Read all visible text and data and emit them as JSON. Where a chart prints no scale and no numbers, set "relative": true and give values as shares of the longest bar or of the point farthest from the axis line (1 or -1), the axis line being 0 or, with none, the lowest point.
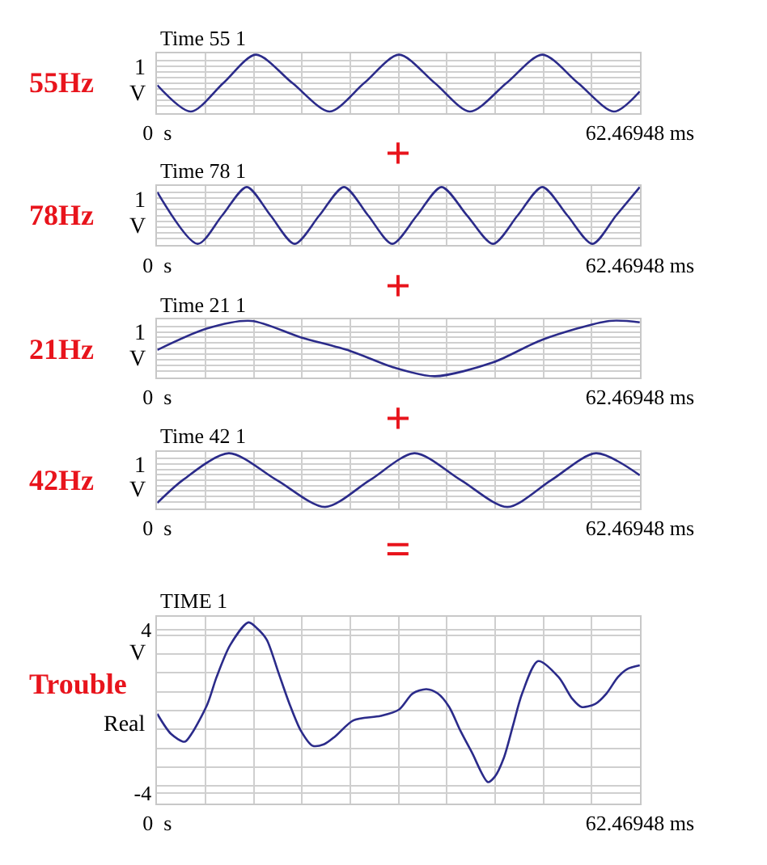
{
  "chart_data": [
    {
      "type": "line",
      "title": "Time 55 1",
      "ylabel": "V",
      "annotations": [
        "55Hz",
        "1",
        "+"
      ],
      "relative": true,
      "grid": true,
      "line_style": "solid",
      "xlim": [
        0,
        62.46948
      ],
      "xticks": [
        {
          "value": 0,
          "label": "0  s"
        },
        {
          "value": 6.246948,
          "label": null
        },
        {
          "value": 12.493896,
          "label": null
        },
        {
          "value": 18.740844,
          "label": null
        },
        {
          "value": 24.987792,
          "label": null
        },
        {
          "value": 31.23474,
          "label": null
        },
        {
          "value": 37.481688,
          "label": null
        },
        {
          "value": 43.728636,
          "label": null
        },
        {
          "value": 49.975584,
          "label": null
        },
        {
          "value": 56.222532,
          "label": null
        },
        {
          "value": 62.46948,
          "label": "62.46948 ms"
        }
      ],
      "x": [
        0,
        4.35,
        8.55,
        12.75,
        17.5,
        22.31,
        26.77,
        31.29,
        35.93,
        40.47,
        45.2,
        49.84,
        54.47,
        59.11,
        62.46
      ],
      "series": [
        {
          "color": "#2b2b8a",
          "values": [
            -0.07,
            -1,
            0,
            1,
            0,
            -1,
            0,
            1,
            0,
            -1,
            0,
            1,
            0,
            -1,
            -0.29
          ]
        }
      ]
    },
    {
      "type": "line",
      "title": "Time 78 1",
      "ylabel": "V",
      "annotations": [
        "78Hz",
        "1",
        "+"
      ],
      "relative": true,
      "grid": true,
      "line_style": "solid",
      "xlim": [
        0,
        62.46948
      ],
      "xticks": [
        {
          "value": 0,
          "label": "0  s"
        },
        {
          "value": 6.246948,
          "label": null
        },
        {
          "value": 12.493896,
          "label": null
        },
        {
          "value": 18.740844,
          "label": null
        },
        {
          "value": 24.987792,
          "label": null
        },
        {
          "value": 31.23474,
          "label": null
        },
        {
          "value": 37.481688,
          "label": null
        },
        {
          "value": 43.728636,
          "label": null
        },
        {
          "value": 49.975584,
          "label": null
        },
        {
          "value": 56.222532,
          "label": null
        },
        {
          "value": 62.46948,
          "label": "62.46948 ms"
        }
      ],
      "x": [
        0,
        5.22,
        8.4,
        11.59,
        14.66,
        17.79,
        20.98,
        24.17,
        27.29,
        30.42,
        33.61,
        36.8,
        40.1,
        43.46,
        46.65,
        49.84,
        53.08,
        56.33,
        59.4,
        62.46
      ],
      "series": [
        {
          "color": "#2b2b8a",
          "values": [
            0.82,
            -1,
            0,
            1,
            0,
            -1,
            0,
            1,
            0,
            -1,
            0,
            1,
            0,
            -1,
            0,
            1,
            0,
            -1,
            0,
            1
          ]
        }
      ]
    },
    {
      "type": "line",
      "title": "Time 21 1",
      "ylabel": "V",
      "annotations": [
        "21Hz",
        "1",
        "+"
      ],
      "relative": true,
      "grid": true,
      "line_style": "solid",
      "xlim": [
        0,
        62.46948
      ],
      "xticks": [
        {
          "value": 0,
          "label": "0  s"
        },
        {
          "value": 6.246948,
          "label": null
        },
        {
          "value": 12.493896,
          "label": null
        },
        {
          "value": 18.740844,
          "label": null
        },
        {
          "value": 24.987792,
          "label": null
        },
        {
          "value": 31.23474,
          "label": null
        },
        {
          "value": 37.481688,
          "label": null
        },
        {
          "value": 43.728636,
          "label": null
        },
        {
          "value": 49.975584,
          "label": null
        },
        {
          "value": 56.222532,
          "label": null
        },
        {
          "value": 62.46948,
          "label": "62.46948 ms"
        }
      ],
      "x": [
        0,
        6.37,
        12.17,
        18.54,
        24.92,
        30.71,
        35.93,
        43.46,
        49.84,
        58.53,
        62.46
      ],
      "series": [
        {
          "color": "#2b2b8a",
          "values": [
            -0.05,
            0.72,
            1,
            0.41,
            -0.08,
            -0.69,
            -1,
            -0.5,
            0.32,
            1,
            0.95
          ]
        }
      ]
    },
    {
      "type": "line",
      "title": "Time 42 1",
      "ylabel": "V",
      "annotations": [
        "42Hz",
        "1",
        "="
      ],
      "relative": true,
      "grid": true,
      "line_style": "solid",
      "xlim": [
        0,
        62.46948
      ],
      "xticks": [
        {
          "value": 0,
          "label": "0  s"
        },
        {
          "value": 6.246948,
          "label": null
        },
        {
          "value": 12.493896,
          "label": null
        },
        {
          "value": 18.740844,
          "label": null
        },
        {
          "value": 24.987792,
          "label": null
        },
        {
          "value": 31.23474,
          "label": null
        },
        {
          "value": 37.481688,
          "label": null
        },
        {
          "value": 43.728636,
          "label": null
        },
        {
          "value": 49.975584,
          "label": null
        },
        {
          "value": 56.222532,
          "label": null
        },
        {
          "value": 62.46948,
          "label": "62.46948 ms"
        }
      ],
      "x": [
        0,
        3.3,
        9.27,
        15.47,
        21.73,
        27.52,
        33.32,
        39.29,
        45.32,
        51.0,
        56.79,
        62.46
      ],
      "series": [
        {
          "color": "#2b2b8a",
          "values": [
            -0.85,
            0,
            1,
            0,
            -1,
            0,
            1,
            0,
            -1,
            0,
            1,
            0.18
          ]
        }
      ]
    },
    {
      "type": "line",
      "title": "TIME 1",
      "ylabel": "V",
      "annotations": [
        "Trouble",
        "Real"
      ],
      "grid": true,
      "line_style": "solid",
      "xlim": [
        0,
        62.46948
      ],
      "ylim": [
        -4.53,
        4.66
      ],
      "xticks": [
        {
          "value": 0,
          "label": "0  s"
        },
        {
          "value": 6.246948,
          "label": null
        },
        {
          "value": 12.493896,
          "label": null
        },
        {
          "value": 18.740844,
          "label": null
        },
        {
          "value": 24.987792,
          "label": null
        },
        {
          "value": 31.23474,
          "label": null
        },
        {
          "value": 37.481688,
          "label": null
        },
        {
          "value": 43.728636,
          "label": null
        },
        {
          "value": 49.975584,
          "label": null
        },
        {
          "value": 56.222532,
          "label": null
        },
        {
          "value": 62.46948,
          "label": "62.46948 ms"
        }
      ],
      "yticks": [
        -4,
        {
          "value": -3.66,
          "label": null
        },
        {
          "value": -2.73,
          "label": null
        },
        {
          "value": -1.81,
          "label": null
        },
        {
          "value": -0.88,
          "label": null
        },
        {
          "value": 0.04,
          "label": null
        },
        {
          "value": 0.96,
          "label": null
        },
        {
          "value": 1.89,
          "label": null
        },
        {
          "value": 2.81,
          "label": null
        },
        {
          "value": 3.73,
          "label": null
        },
        4
      ],
      "x": [
        0,
        1.77,
        3.54,
        4.43,
        6.49,
        7.67,
        9.44,
        11.81,
        13.0,
        14.17,
        15.65,
        17.12,
        18.6,
        20.07,
        21.55,
        23.02,
        25.38,
        28.93,
        31.29,
        33.06,
        34.83,
        36.3,
        37.78,
        39.25,
        40.73,
        42.8,
        43.68,
        44.86,
        46.04,
        47.23,
        49.29,
        51.95,
        53.72,
        54.9,
        56.67,
        58.15,
        59.62,
        60.8,
        62.46
      ],
      "series": [
        {
          "color": "#2b2b8a",
          "values": [
            -0.12,
            -1.1,
            -1.49,
            -1.1,
            0.36,
            1.68,
            3.26,
            4.37,
            4.05,
            3.52,
            1.94,
            0.36,
            -0.96,
            -1.68,
            -1.62,
            -1.23,
            -0.44,
            -0.22,
            0.09,
            0.88,
            1.09,
            0.88,
            0.22,
            -0.96,
            -2.02,
            -3.47,
            -3.21,
            -2.28,
            -0.7,
            0.88,
            2.47,
            1.68,
            0.62,
            0.22,
            0.36,
            0.88,
            1.68,
            2.07,
            2.26
          ]
        }
      ]
    }
  ]
}
